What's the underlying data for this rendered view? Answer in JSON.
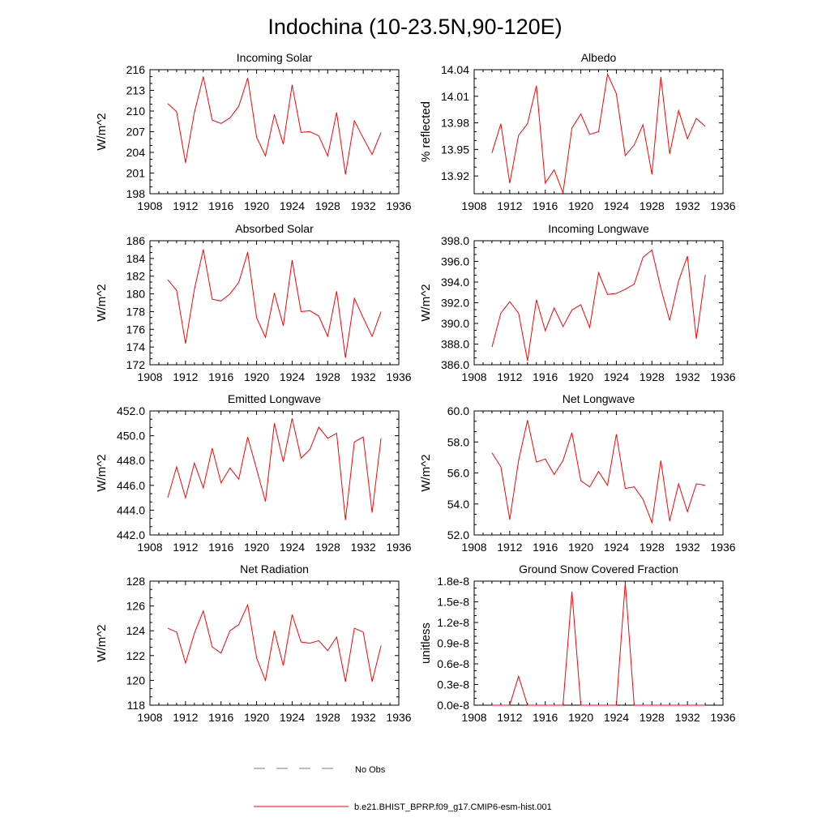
{
  "figure_title": "Indochina (10-23.5N,90-120E)",
  "legend": {
    "obs_label": "No Obs",
    "obs_color": "#6f6fd6",
    "model_label": "b.e21.BHIST_BPRP.f09_g17.CMIP6-esm-hist.001",
    "model_color": "#ff0000"
  },
  "chart_data": [
    {
      "type": "line",
      "title": "Incoming Solar",
      "ylabel": "W/m^2",
      "xlim": [
        1908,
        1936
      ],
      "xticks": [
        "1908",
        "1912",
        "1916",
        "1920",
        "1924",
        "1928",
        "1932",
        "1936"
      ],
      "ylim": [
        198,
        216
      ],
      "yticks": [
        "198",
        "201",
        "204",
        "207",
        "210",
        "213",
        "216"
      ],
      "yaxis_side": "left",
      "series": [
        {
          "x": [
            1910,
            1911,
            1912,
            1913,
            1914,
            1915,
            1916,
            1917,
            1918,
            1919,
            1920,
            1921,
            1922,
            1923,
            1924,
            1925,
            1926,
            1927,
            1928,
            1929,
            1930,
            1931,
            1932,
            1933,
            1934
          ],
          "values": [
            211.1,
            209.9,
            202.5,
            209.8,
            215.0,
            208.7,
            208.2,
            209.0,
            210.7,
            214.8,
            206.2,
            203.5,
            209.5,
            205.2,
            213.8,
            206.9,
            207.0,
            206.4,
            203.5,
            209.8,
            200.8,
            208.6,
            206.1,
            203.7,
            206.9
          ]
        }
      ]
    },
    {
      "type": "line",
      "title": "Albedo",
      "ylabel": "% reflected",
      "xlim": [
        1908,
        1936
      ],
      "xticks": [
        "1908",
        "1912",
        "1916",
        "1920",
        "1924",
        "1928",
        "1932",
        "1936"
      ],
      "ylim": [
        13.9,
        14.04
      ],
      "yticks": [
        "13.92",
        "13.95",
        "13.98",
        "14.01",
        "14.04"
      ],
      "yaxis_side": "left",
      "series": [
        {
          "x": [
            1910,
            1911,
            1912,
            1913,
            1914,
            1915,
            1916,
            1917,
            1918,
            1919,
            1920,
            1921,
            1922,
            1923,
            1924,
            1925,
            1926,
            1927,
            1928,
            1929,
            1930,
            1931,
            1932,
            1933,
            1934
          ],
          "values": [
            13.946,
            13.979,
            13.912,
            13.966,
            13.979,
            14.022,
            13.912,
            13.927,
            13.901,
            13.974,
            13.99,
            13.967,
            13.97,
            14.035,
            14.013,
            13.943,
            13.955,
            13.978,
            13.922,
            14.032,
            13.945,
            13.994,
            13.962,
            13.985,
            13.976
          ]
        }
      ]
    },
    {
      "type": "line",
      "title": "Absorbed Solar",
      "ylabel": "W/m^2",
      "xlim": [
        1908,
        1936
      ],
      "xticks": [
        "1908",
        "1912",
        "1916",
        "1920",
        "1924",
        "1928",
        "1932",
        "1936"
      ],
      "ylim": [
        172,
        186
      ],
      "yticks": [
        "172",
        "174",
        "176",
        "178",
        "180",
        "182",
        "184",
        "186"
      ],
      "yaxis_side": "left",
      "series": [
        {
          "x": [
            1910,
            1911,
            1912,
            1913,
            1914,
            1915,
            1916,
            1917,
            1918,
            1919,
            1920,
            1921,
            1922,
            1923,
            1924,
            1925,
            1926,
            1927,
            1928,
            1929,
            1930,
            1931,
            1932,
            1933,
            1934
          ],
          "values": [
            181.6,
            180.4,
            174.4,
            180.5,
            185.0,
            179.4,
            179.2,
            180.0,
            181.3,
            184.7,
            177.3,
            175.1,
            180.1,
            176.4,
            183.8,
            178.0,
            178.1,
            177.5,
            175.2,
            180.3,
            172.8,
            179.5,
            177.3,
            175.2,
            178.0
          ]
        }
      ]
    },
    {
      "type": "line",
      "title": "Incoming Longwave",
      "ylabel": "W/m^2",
      "xlim": [
        1908,
        1936
      ],
      "xticks": [
        "1908",
        "1912",
        "1916",
        "1920",
        "1924",
        "1928",
        "1932",
        "1936"
      ],
      "ylim": [
        386,
        398
      ],
      "yticks": [
        "386.0",
        "388.0",
        "390.0",
        "392.0",
        "394.0",
        "396.0",
        "398.0"
      ],
      "yaxis_side": "left",
      "series": [
        {
          "x": [
            1910,
            1911,
            1912,
            1913,
            1914,
            1915,
            1916,
            1917,
            1918,
            1919,
            1920,
            1921,
            1922,
            1923,
            1924,
            1925,
            1926,
            1927,
            1928,
            1929,
            1930,
            1931,
            1932,
            1933,
            1934
          ],
          "values": [
            387.7,
            391.0,
            392.1,
            391.0,
            386.4,
            392.3,
            389.3,
            391.5,
            389.7,
            391.3,
            391.8,
            389.6,
            394.9,
            392.8,
            392.9,
            393.3,
            393.8,
            396.4,
            397.1,
            393.4,
            390.3,
            394.1,
            396.5,
            388.5,
            394.7
          ]
        }
      ]
    },
    {
      "type": "line",
      "title": "Emitted Longwave",
      "ylabel": "W/m^2",
      "xlim": [
        1908,
        1936
      ],
      "xticks": [
        "1908",
        "1912",
        "1916",
        "1920",
        "1924",
        "1928",
        "1932",
        "1936"
      ],
      "ylim": [
        442,
        452
      ],
      "yticks": [
        "442.0",
        "444.0",
        "446.0",
        "448.0",
        "450.0",
        "452.0"
      ],
      "yaxis_side": "left",
      "series": [
        {
          "x": [
            1910,
            1911,
            1912,
            1913,
            1914,
            1915,
            1916,
            1917,
            1918,
            1919,
            1920,
            1921,
            1922,
            1923,
            1924,
            1925,
            1926,
            1927,
            1928,
            1929,
            1930,
            1931,
            1932,
            1933,
            1934
          ],
          "values": [
            445.0,
            447.5,
            445.0,
            447.8,
            445.8,
            449.0,
            446.2,
            447.4,
            446.5,
            449.9,
            447.3,
            444.7,
            451.0,
            447.9,
            451.4,
            448.2,
            448.9,
            450.7,
            449.8,
            450.2,
            443.2,
            449.5,
            449.9,
            443.8,
            449.8
          ]
        }
      ]
    },
    {
      "type": "line",
      "title": "Net Longwave",
      "ylabel": "W/m^2",
      "xlim": [
        1908,
        1936
      ],
      "xticks": [
        "1908",
        "1912",
        "1916",
        "1920",
        "1924",
        "1928",
        "1932",
        "1936"
      ],
      "ylim": [
        52,
        60
      ],
      "yticks": [
        "52.0",
        "54.0",
        "56.0",
        "58.0",
        "60.0"
      ],
      "yaxis_side": "left",
      "series": [
        {
          "x": [
            1910,
            1911,
            1912,
            1913,
            1914,
            1915,
            1916,
            1917,
            1918,
            1919,
            1920,
            1921,
            1922,
            1923,
            1924,
            1925,
            1926,
            1927,
            1928,
            1929,
            1930,
            1931,
            1932,
            1933,
            1934
          ],
          "values": [
            57.3,
            56.4,
            53.0,
            56.8,
            59.4,
            56.7,
            56.9,
            55.9,
            56.8,
            58.6,
            55.5,
            55.1,
            56.1,
            55.2,
            58.5,
            55.0,
            55.1,
            54.3,
            52.8,
            56.8,
            52.9,
            55.3,
            53.5,
            55.3,
            55.2
          ]
        }
      ]
    },
    {
      "type": "line",
      "title": "Net Radiation",
      "ylabel": "W/m^2",
      "xlim": [
        1908,
        1936
      ],
      "xticks": [
        "1908",
        "1912",
        "1916",
        "1920",
        "1924",
        "1928",
        "1932",
        "1936"
      ],
      "ylim": [
        118,
        128
      ],
      "yticks": [
        "118",
        "120",
        "122",
        "124",
        "126",
        "128"
      ],
      "yaxis_side": "left",
      "series": [
        {
          "x": [
            1910,
            1911,
            1912,
            1913,
            1914,
            1915,
            1916,
            1917,
            1918,
            1919,
            1920,
            1921,
            1922,
            1923,
            1924,
            1925,
            1926,
            1927,
            1928,
            1929,
            1930,
            1931,
            1932,
            1933,
            1934
          ],
          "values": [
            124.2,
            123.9,
            121.4,
            123.8,
            125.6,
            122.7,
            122.2,
            124.0,
            124.5,
            126.1,
            121.8,
            120.0,
            124.0,
            121.2,
            125.3,
            123.1,
            123.0,
            123.2,
            122.4,
            123.5,
            119.9,
            124.2,
            123.9,
            119.9,
            122.8
          ]
        }
      ]
    },
    {
      "type": "line",
      "title": "Ground Snow Covered Fraction",
      "ylabel": "unitless",
      "xlim": [
        1908,
        1936
      ],
      "xticks": [
        "1908",
        "1912",
        "1916",
        "1920",
        "1924",
        "1928",
        "1932",
        "1936"
      ],
      "ylim": [
        0,
        1.8e-08
      ],
      "yticks": [
        "0.0e-8",
        "0.3e-8",
        "0.6e-8",
        "0.9e-8",
        "1.2e-8",
        "1.5e-8",
        "1.8e-8"
      ],
      "yaxis_side": "right",
      "series": [
        {
          "x": [
            1910,
            1911,
            1912,
            1913,
            1914,
            1915,
            1916,
            1917,
            1918,
            1919,
            1920,
            1921,
            1922,
            1923,
            1924,
            1925,
            1926,
            1927,
            1928,
            1929,
            1930,
            1931,
            1932,
            1933,
            1934
          ],
          "values": [
            0,
            0,
            0,
            4.2e-09,
            0,
            0,
            0,
            0,
            0,
            1.65e-08,
            0,
            0,
            0,
            0,
            0,
            1.78e-08,
            0,
            0,
            0,
            0,
            0,
            0,
            0,
            0,
            0
          ]
        }
      ]
    }
  ]
}
